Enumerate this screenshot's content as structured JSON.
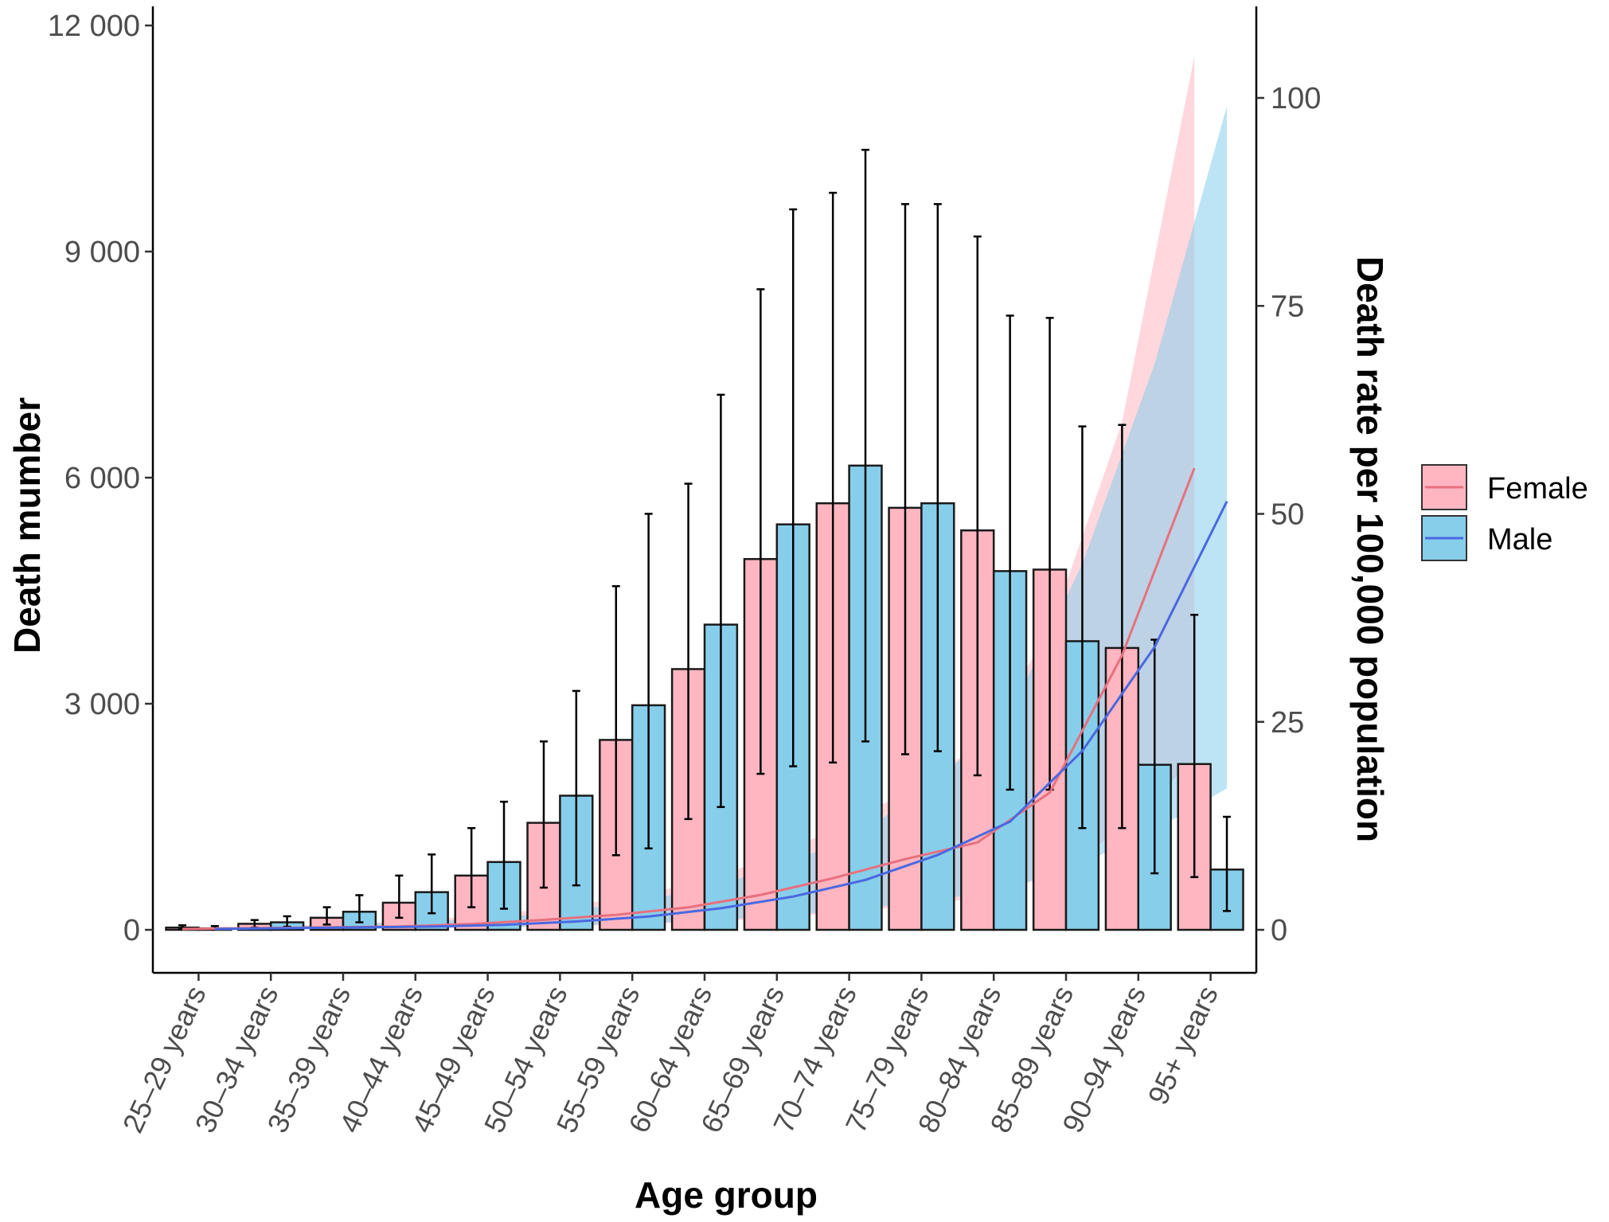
{
  "chart_data": {
    "type": "bar",
    "categories": [
      "25–29 years",
      "30–34 years",
      "35–39 years",
      "40–44 years",
      "45–49 years",
      "50–54 years",
      "55–59 years",
      "60–64 years",
      "65–69 years",
      "70–74 years",
      "75–79 years",
      "80–84 years",
      "85–89 years",
      "90–94 years",
      "95+ years"
    ],
    "xlabel": "Age group",
    "ylabel": "Death mumber",
    "y2label": "Death rate per 100,000 population",
    "ylim": [
      0,
      12000
    ],
    "y2lim": [
      0,
      110
    ],
    "yticks": [
      0,
      3000,
      6000,
      9000,
      12000
    ],
    "ytick_labels": [
      "0",
      "3 000",
      "6 000",
      "9 000",
      "12 000"
    ],
    "y2ticks": [
      0,
      25,
      50,
      75,
      100
    ],
    "y2tick_labels": [
      "0",
      "25",
      "50",
      "75",
      "100"
    ],
    "colors": {
      "female_fill": "#ffb6c1",
      "male_fill": "#87ceeb",
      "female_line": "#e8707e",
      "male_line": "#4a68e0"
    },
    "series": [
      {
        "name": "Female",
        "kind": "bar",
        "values": [
          30,
          80,
          160,
          360,
          720,
          1420,
          2520,
          3460,
          4920,
          5660,
          5600,
          5300,
          4780,
          3740,
          2200
        ],
        "lower": [
          10,
          30,
          70,
          160,
          300,
          560,
          990,
          1470,
          2070,
          2220,
          2330,
          2050,
          1860,
          1350,
          700
        ],
        "upper": [
          60,
          130,
          300,
          720,
          1350,
          2500,
          4560,
          5920,
          8500,
          9780,
          9630,
          9200,
          8120,
          6700,
          4180
        ]
      },
      {
        "name": "Male",
        "kind": "bar",
        "values": [
          20,
          100,
          240,
          500,
          900,
          1780,
          2980,
          4050,
          5380,
          6160,
          5660,
          4760,
          3830,
          2190,
          800
        ],
        "lower": [
          5,
          40,
          100,
          220,
          280,
          590,
          1080,
          1630,
          2170,
          2500,
          2370,
          1860,
          1350,
          750,
          250
        ],
        "upper": [
          50,
          180,
          460,
          1000,
          1700,
          3170,
          5520,
          7100,
          9560,
          10350,
          9630,
          8150,
          6680,
          3850,
          1500
        ]
      },
      {
        "name": "Female",
        "kind": "rate",
        "values": [
          0.1,
          0.2,
          0.3,
          0.4,
          0.7,
          1.2,
          1.8,
          2.7,
          4.2,
          6.2,
          8.5,
          10.5,
          16.5,
          33.0,
          55.5
        ],
        "lower": [
          0.02,
          0.06,
          0.1,
          0.2,
          0.3,
          0.4,
          0.6,
          0.9,
          1.3,
          2.0,
          2.8,
          3.8,
          6.5,
          12.0,
          20.5
        ],
        "upper": [
          0.2,
          0.4,
          0.6,
          1.0,
          1.6,
          2.5,
          3.7,
          5.4,
          8.2,
          12.0,
          16.5,
          22.0,
          36.0,
          61.0,
          105.0
        ]
      },
      {
        "name": "Male",
        "kind": "rate",
        "values": [
          0.1,
          0.2,
          0.3,
          0.4,
          0.6,
          1.0,
          1.6,
          2.6,
          4.0,
          6.0,
          9.0,
          13.0,
          21.5,
          34.0,
          51.5
        ],
        "lower": [
          0.02,
          0.05,
          0.1,
          0.2,
          0.3,
          0.5,
          0.8,
          1.2,
          1.8,
          2.6,
          3.6,
          5.0,
          8.0,
          12.0,
          17.0
        ],
        "upper": [
          0.2,
          0.4,
          0.7,
          1.0,
          1.5,
          2.4,
          3.6,
          5.5,
          8.2,
          12.0,
          18.0,
          26.0,
          44.0,
          68.0,
          99.0
        ]
      }
    ],
    "legend": {
      "position": "right",
      "items": [
        {
          "label": "Female",
          "color": "#ffb6c1",
          "line": "#e8707e"
        },
        {
          "label": "Male",
          "color": "#87ceeb",
          "line": "#4a68e0"
        }
      ]
    },
    "grid": false
  }
}
